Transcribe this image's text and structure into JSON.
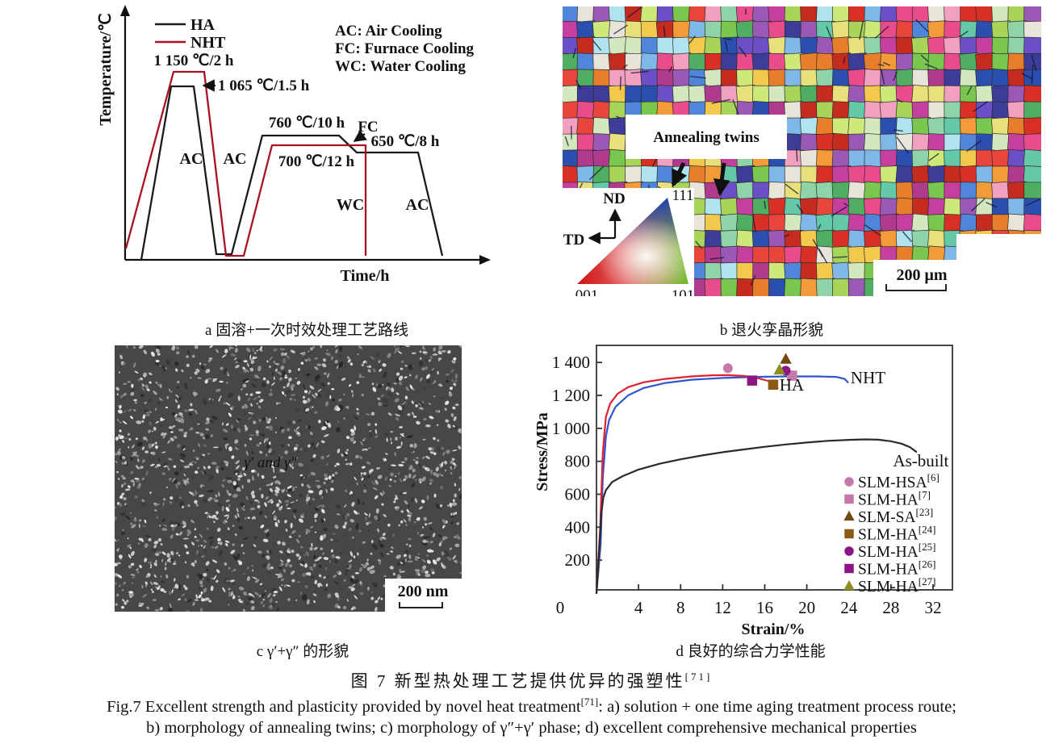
{
  "figure": {
    "caption_zh": "图 7  新型热处理工艺提供优异的强塑性",
    "caption_zh_ref": "[71]",
    "caption_en_1a": "Fig.7 Excellent strength and plasticity provided by novel heat treatment",
    "caption_en_ref": "[71]",
    "caption_en_1b": ": a) solution + one time aging treatment process route;",
    "caption_en_2": "b) morphology of annealing twins; c) morphology of γ″+γ′ phase; d) excellent comprehensive mechanical properties"
  },
  "panel_a": {
    "caption": "a 固溶+一次时效处理工艺路线",
    "y_axis_label": "Temperature/℃",
    "x_axis_label": "Time/h",
    "legend": {
      "ha": "HA",
      "nht": "NHT"
    },
    "cooling_legend": [
      "AC: Air Cooling",
      "FC: Furnace Cooling",
      "WC: Water Cooling"
    ],
    "annotations": {
      "nht_solution": "1 150 ℃/2 h",
      "ha_solution": "1 065 ℃/1.5 h",
      "ha_age1": "760 ℃/10 h",
      "fc": "FC",
      "ha_age2": "650 ℃/8 h",
      "nht_age": "700 ℃/12 h",
      "wc": "WC",
      "ac_left": "AC",
      "ac_mid": "AC",
      "ac_right": "AC"
    },
    "colors": {
      "ha": "#1a1a1a",
      "nht": "#a81323"
    },
    "curves": {
      "ha_points": [
        [
          55,
          322
        ],
        [
          92,
          107
        ],
        [
          120,
          107
        ],
        [
          148,
          315
        ],
        [
          167,
          315
        ],
        [
          205,
          168
        ],
        [
          300,
          168
        ],
        [
          322,
          189
        ],
        [
          398,
          189
        ],
        [
          428,
          317
        ]
      ],
      "nht_points": [
        [
          36,
          308
        ],
        [
          95,
          89
        ],
        [
          133,
          89
        ],
        [
          160,
          317
        ],
        [
          182,
          317
        ],
        [
          217,
          180
        ],
        [
          333,
          180
        ],
        [
          333,
          317
        ]
      ]
    }
  },
  "panel_b": {
    "caption": "b 退火孪晶形貌",
    "annotation": "Annealing twins",
    "ipf": {
      "nd": "ND",
      "td": "TD",
      "v111": "111",
      "v001": "001",
      "v101": "101"
    },
    "scale_bar": "200 μm",
    "palette": [
      "#d93025",
      "#c62b1f",
      "#e8453c",
      "#f29b38",
      "#e87d2b",
      "#f2c94c",
      "#e8e07a",
      "#cfe87a",
      "#a8d45a",
      "#7ac74f",
      "#4fae62",
      "#8fd4a8",
      "#63c9a8",
      "#aee3ef",
      "#7fb8e8",
      "#4f86d9",
      "#2b4fae",
      "#3d3d99",
      "#6a4fc7",
      "#9b59b6",
      "#c73f9e",
      "#e84c8b",
      "#f2a0c0",
      "#e8e4d9",
      "#d4e8c0",
      "#b03a8e"
    ]
  },
  "panel_c": {
    "caption": "c γ′+γ″ 的形貌",
    "phase_label": "γ′ and γ″",
    "phase_label_color": "#e8e820",
    "scale_bar": "200 nm"
  },
  "panel_d": {
    "caption": "d 良好的综合力学性能",
    "y_axis_label": "Stress/MPa",
    "x_axis_label": "Strain/%",
    "y_tick_labels": [
      "200",
      "400",
      "600",
      "800",
      "1 000",
      "1 200",
      "1 400"
    ],
    "x_tick_labels": [
      "0",
      "4",
      "8",
      "12",
      "16",
      "20",
      "24",
      "28",
      "32"
    ]
  },
  "chart_data": {
    "type": "line",
    "title": "",
    "xlabel": "Strain/%",
    "ylabel": "Stress/MPa",
    "xlim": [
      0,
      34
    ],
    "ylim": [
      0,
      1500
    ],
    "x_ticks": [
      0,
      4,
      8,
      12,
      16,
      20,
      24,
      28,
      32
    ],
    "y_ticks": [
      200,
      400,
      600,
      800,
      1000,
      1200,
      1400
    ],
    "grid": false,
    "legend_position": "lower right",
    "series": [
      {
        "name": "NHT",
        "color": "#2f55cd",
        "label_pos": [
          24.17,
          1274
        ],
        "points": [
          [
            0,
            0
          ],
          [
            0.4,
            300
          ],
          [
            0.6,
            700
          ],
          [
            0.9,
            950
          ],
          [
            1.2,
            1050
          ],
          [
            1.8,
            1130
          ],
          [
            3,
            1200
          ],
          [
            4.5,
            1245
          ],
          [
            6.5,
            1275
          ],
          [
            9,
            1295
          ],
          [
            12,
            1306
          ],
          [
            15,
            1312
          ],
          [
            18,
            1315
          ],
          [
            21,
            1315
          ],
          [
            22.8,
            1312
          ],
          [
            23.6,
            1300
          ],
          [
            23.9,
            1280
          ]
        ]
      },
      {
        "name": "HA",
        "color": "#e02030",
        "label_pos": [
          17.4,
          1229
        ],
        "points": [
          [
            0,
            0
          ],
          [
            0.35,
            400
          ],
          [
            0.6,
            850
          ],
          [
            0.9,
            1070
          ],
          [
            1.3,
            1150
          ],
          [
            2,
            1210
          ],
          [
            3,
            1250
          ],
          [
            4.5,
            1280
          ],
          [
            6.5,
            1300
          ],
          [
            9,
            1315
          ],
          [
            11,
            1322
          ],
          [
            12.5,
            1323
          ],
          [
            14,
            1318
          ],
          [
            15.3,
            1306
          ],
          [
            16.3,
            1288
          ],
          [
            17,
            1262
          ],
          [
            17.2,
            1245
          ]
        ]
      },
      {
        "name": "As-built",
        "color": "#2a2a2a",
        "label_pos": [
          28.2,
          769
        ],
        "points": [
          [
            0,
            0
          ],
          [
            0.25,
            250
          ],
          [
            0.45,
            480
          ],
          [
            0.65,
            580
          ],
          [
            0.9,
            625
          ],
          [
            1.5,
            675
          ],
          [
            2.5,
            710
          ],
          [
            4,
            750
          ],
          [
            6,
            785
          ],
          [
            8,
            812
          ],
          [
            10,
            835
          ],
          [
            12,
            855
          ],
          [
            14,
            872
          ],
          [
            16,
            888
          ],
          [
            18,
            902
          ],
          [
            20,
            914
          ],
          [
            22,
            924
          ],
          [
            24,
            930
          ],
          [
            25.5,
            933
          ],
          [
            26.8,
            931
          ],
          [
            28,
            922
          ],
          [
            29,
            907
          ],
          [
            29.8,
            886
          ],
          [
            30.4,
            858
          ]
        ]
      }
    ],
    "scatter": [
      {
        "name": "SLM-HSA",
        "ref": "[6]",
        "marker": "circle",
        "color": "#c579a8",
        "x": 12.5,
        "y": 1365
      },
      {
        "name": "SLM-HA",
        "ref": "[7]",
        "marker": "square",
        "color": "#c579a8",
        "x": 18.6,
        "y": 1320
      },
      {
        "name": "SLM-SA",
        "ref": "[23]",
        "marker": "triangle",
        "color": "#744811",
        "x": 18.0,
        "y": 1420
      },
      {
        "name": "SLM-HA",
        "ref": "[24]",
        "marker": "square",
        "color": "#8a5a14",
        "x": 16.8,
        "y": 1265
      },
      {
        "name": "SLM-HA",
        "ref": "[25]",
        "marker": "circle",
        "color": "#8c1683",
        "x": 18.0,
        "y": 1350
      },
      {
        "name": "SLM-HA",
        "ref": "[26]",
        "marker": "square",
        "color": "#8c1683",
        "x": 14.8,
        "y": 1290
      },
      {
        "name": "SLM-HA",
        "ref": "[27]",
        "marker": "triangle",
        "color": "#8f8f1d",
        "x": 17.4,
        "y": 1355
      }
    ]
  }
}
